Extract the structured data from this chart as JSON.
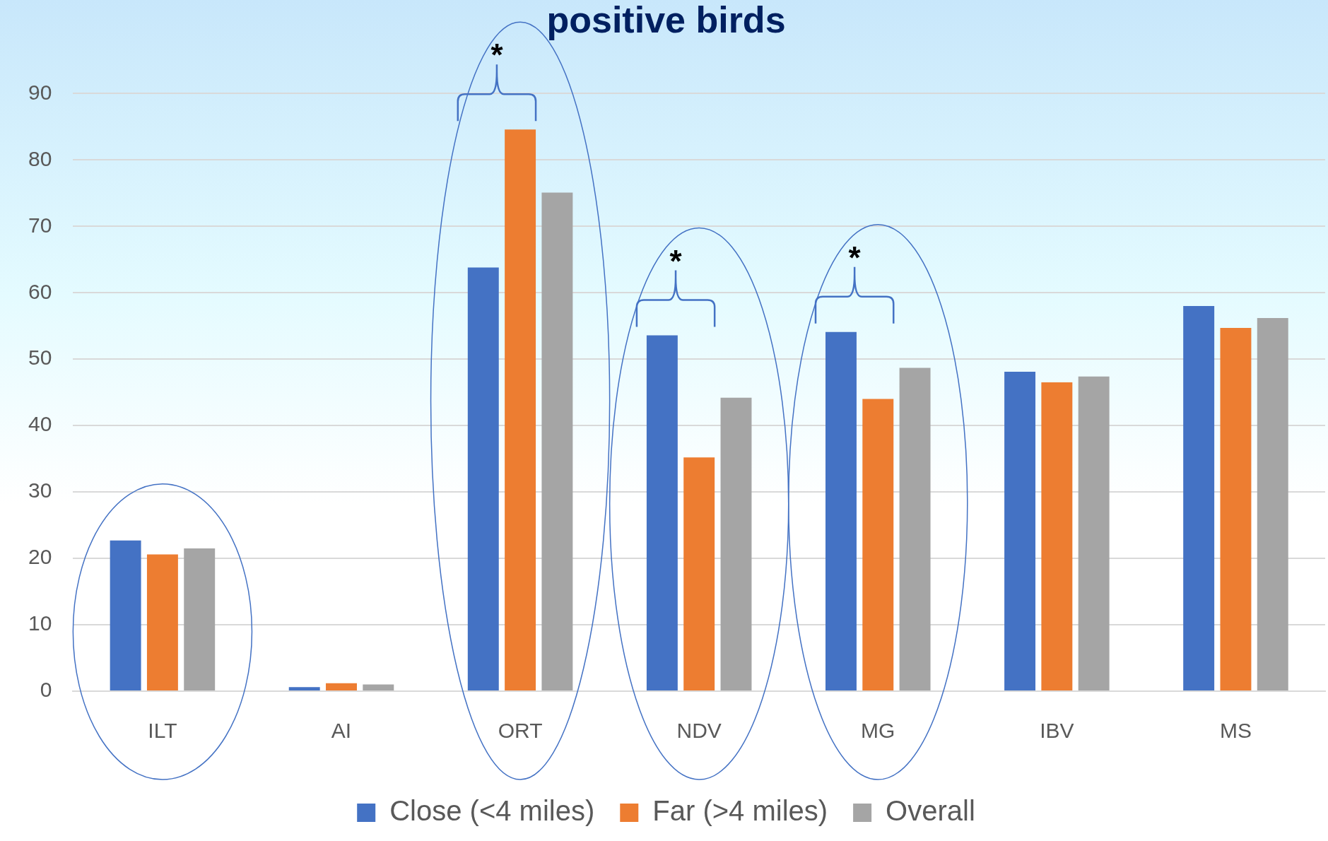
{
  "chart_data": {
    "type": "bar",
    "title": "positive birds",
    "categories": [
      "ILT",
      "AI",
      "ORT",
      "NDV",
      "MG",
      "IBV",
      "MS"
    ],
    "series": [
      {
        "name": "Close (<4 miles)",
        "color": "#4472c4",
        "values": [
          22.7,
          0.6,
          63.8,
          53.6,
          54.1,
          48.1,
          58.0
        ]
      },
      {
        "name": "Far (>4 miles)",
        "color": "#ed7d31",
        "values": [
          20.6,
          1.2,
          84.6,
          35.2,
          44.0,
          46.5,
          54.7
        ]
      },
      {
        "name": "Overall",
        "color": "#a5a5a5",
        "values": [
          21.5,
          1.0,
          75.1,
          44.2,
          48.7,
          47.4,
          56.2
        ]
      }
    ],
    "ylim": [
      0,
      90
    ],
    "yticks": [
      0,
      10,
      20,
      30,
      40,
      50,
      60,
      70,
      80,
      90
    ],
    "grid": "y",
    "legend": "bottom",
    "annotations": [
      "*",
      "*",
      "*"
    ]
  }
}
